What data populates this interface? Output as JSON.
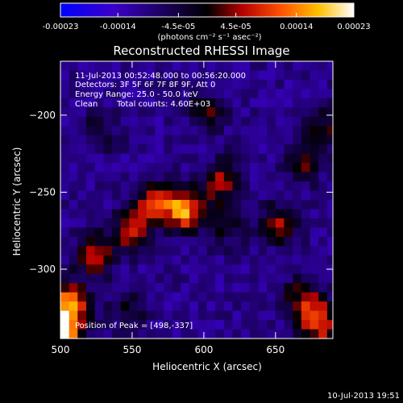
{
  "colorbar": {
    "tick_labels": [
      "-0.00023",
      "-0.00014",
      "-4.5e-05",
      "4.5e-05",
      "0.00014",
      "0.00023"
    ],
    "tick_values": [
      -0.00023,
      -0.00014,
      -4.5e-05,
      4.5e-05,
      0.00014,
      0.00023
    ],
    "range": [
      -0.00023,
      0.00023
    ],
    "unit_label": "(photons cm⁻² s⁻¹ asec⁻²)",
    "colors": [
      "#0000ff",
      "#3a00c8",
      "#000000",
      "#b40000",
      "#ff5000",
      "#ffc000",
      "#ffffff"
    ]
  },
  "chart_data": {
    "type": "heatmap",
    "title": "Reconstructed RHESSI Image",
    "xlabel": "Heliocentric X (arcsec)",
    "ylabel": "Heliocentric Y (arcsec)",
    "xlim": [
      500,
      690
    ],
    "ylim": [
      -345,
      -165
    ],
    "x_ticks": [
      500,
      550,
      600,
      650
    ],
    "y_ticks": [
      -200,
      -250,
      -300
    ],
    "x_tick_labels": [
      "500",
      "550",
      "600",
      "650"
    ],
    "y_tick_labels": [
      "−200",
      "−250",
      "−300"
    ],
    "sources": [
      {
        "x": 583,
        "y": -258,
        "rel": 0.9
      },
      {
        "x": 561,
        "y": -255,
        "rel": 0.6
      },
      {
        "x": 545,
        "y": -273,
        "rel": 0.5
      },
      {
        "x": 520,
        "y": -288,
        "rel": 0.55
      },
      {
        "x": 503,
        "y": -320,
        "rel": 0.8
      },
      {
        "x": 498,
        "y": -337,
        "rel": 1.0
      },
      {
        "x": 610,
        "y": -240,
        "rel": 0.55
      },
      {
        "x": 612,
        "y": -268,
        "rel": 0.35
      },
      {
        "x": 678,
        "y": -332,
        "rel": 0.7
      },
      {
        "x": 666,
        "y": -316,
        "rel": 0.45
      },
      {
        "x": 650,
        "y": -268,
        "rel": 0.5
      },
      {
        "x": 666,
        "y": -228,
        "rel": 0.4
      },
      {
        "x": 600,
        "y": -195,
        "rel": 0.35
      },
      {
        "x": 525,
        "y": -208,
        "rel": 0.25
      },
      {
        "x": 682,
        "y": -205,
        "rel": 0.35
      },
      {
        "x": 545,
        "y": -325,
        "rel": 0.3
      }
    ]
  },
  "annotations": {
    "time_range": "11-Jul-2013 00:52:48.000 to 00:56:20.000",
    "detectors": "Detectors: 3F 5F 6F 7F 8F 9F, Att 0",
    "energy": "Energy Range: 25.0 - 50.0 keV",
    "clean_label": "Clean",
    "total_counts": "Total counts: 4.60E+03",
    "peak": "Position of Peak = [498,-337]"
  },
  "footer": {
    "timestamp": "10-Jul-2013 19:51"
  }
}
